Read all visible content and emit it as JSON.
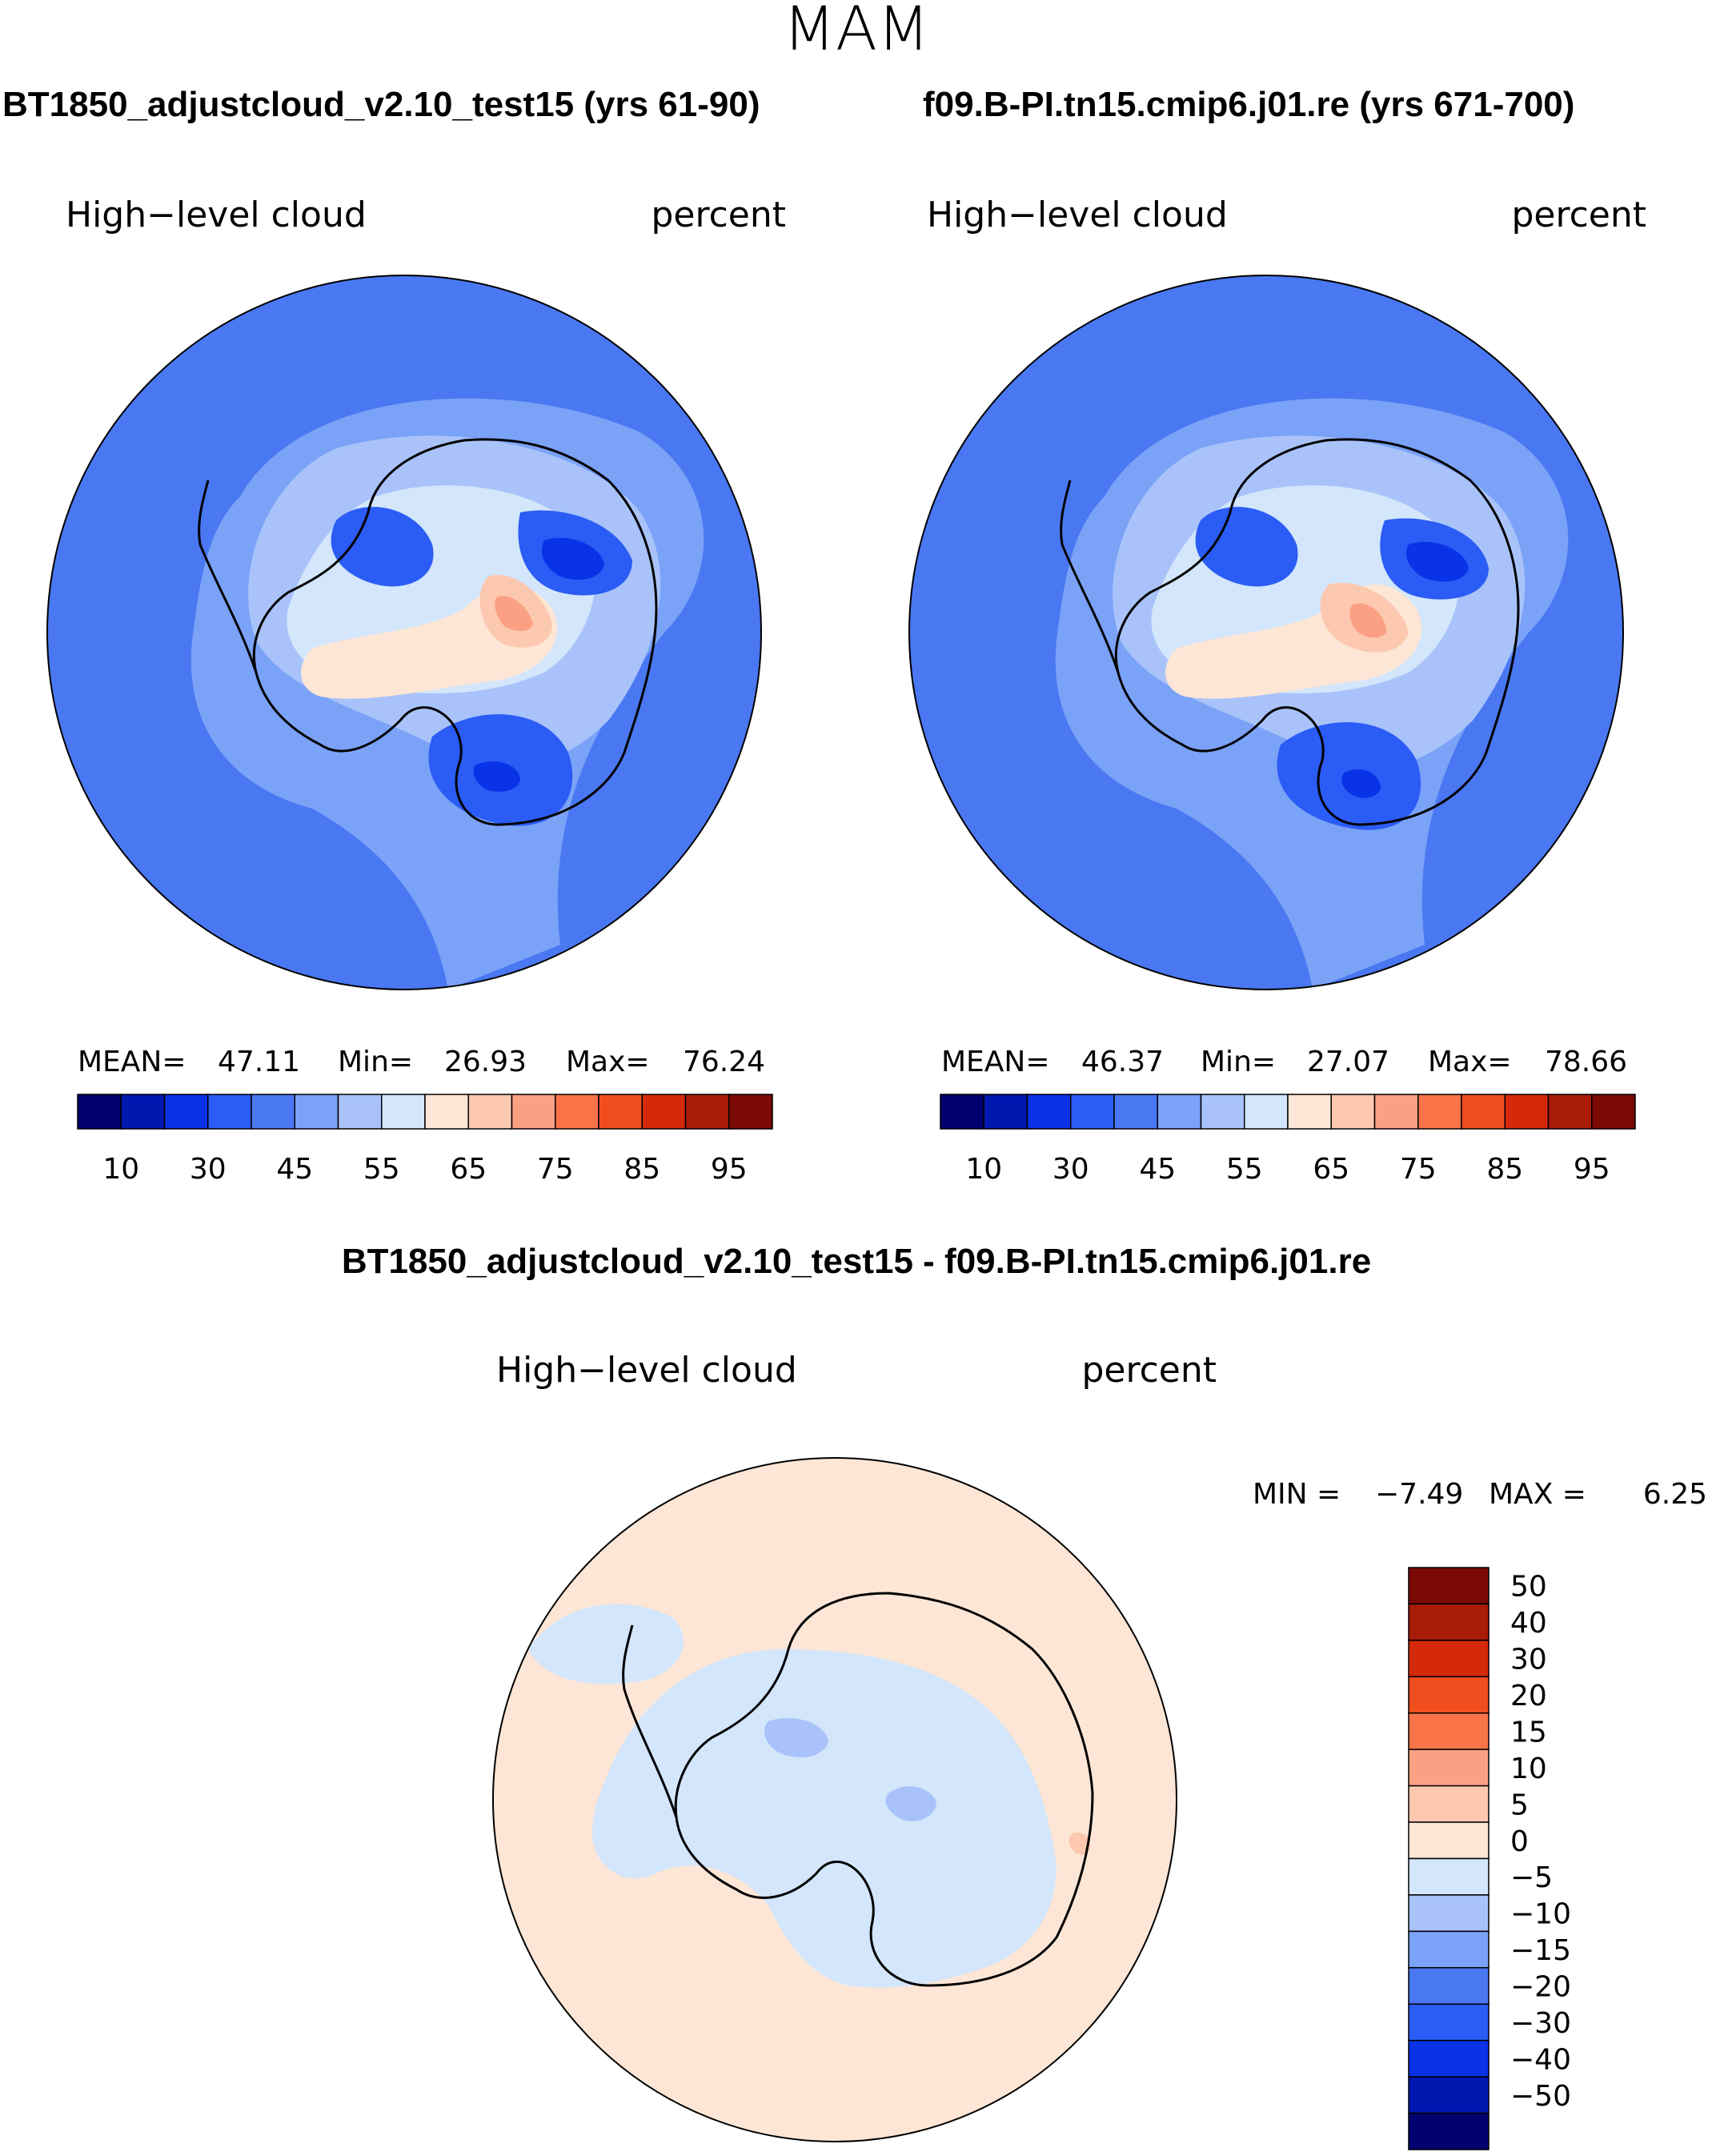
{
  "figure": {
    "season": "MAM"
  },
  "chart_data": [
    {
      "type": "heatmap",
      "projection": "south-polar-stereographic",
      "case_title": "BT1850_adjustcloud_v2.10_test15 (yrs 61-90)",
      "variable": "High−level cloud",
      "units": "percent",
      "stats": {
        "mean_label": "MEAN=",
        "mean": "47.11",
        "min_label": "Min=",
        "min": "26.93",
        "max_label": "Max=",
        "max": "76.24"
      },
      "colorbar": {
        "levels": [
          5,
          10,
          15,
          30,
          40,
          45,
          50,
          55,
          60,
          65,
          70,
          75,
          80,
          85,
          90,
          95
        ],
        "tick_labels": [
          "10",
          "30",
          "45",
          "55",
          "65",
          "75",
          "85",
          "95"
        ],
        "colors": [
          "#000070",
          "#0018b0",
          "#0a32e6",
          "#2b5cf5",
          "#4a78f2",
          "#7aa2f7",
          "#a9c3fa",
          "#d3e6fb",
          "#fde6d5",
          "#fcc8b0",
          "#fba083",
          "#f97448",
          "#f04e1f",
          "#d5290c",
          "#a81c08",
          "#7b0a07"
        ]
      }
    },
    {
      "type": "heatmap",
      "projection": "south-polar-stereographic",
      "case_title": "f09.B-PI.tn15.cmip6.j01.re (yrs 671-700)",
      "variable": "High−level cloud",
      "units": "percent",
      "stats": {
        "mean_label": "MEAN=",
        "mean": "46.37",
        "min_label": "Min=",
        "min": "27.07",
        "max_label": "Max=",
        "max": "78.66"
      },
      "colorbar": {
        "levels": [
          5,
          10,
          15,
          30,
          40,
          45,
          50,
          55,
          60,
          65,
          70,
          75,
          80,
          85,
          90,
          95
        ],
        "tick_labels": [
          "10",
          "30",
          "45",
          "55",
          "65",
          "75",
          "85",
          "95"
        ],
        "colors": [
          "#000070",
          "#0018b0",
          "#0a32e6",
          "#2b5cf5",
          "#4a78f2",
          "#7aa2f7",
          "#a9c3fa",
          "#d3e6fb",
          "#fde6d5",
          "#fcc8b0",
          "#fba083",
          "#f97448",
          "#f04e1f",
          "#d5290c",
          "#a81c08",
          "#7b0a07"
        ]
      }
    },
    {
      "type": "heatmap",
      "projection": "south-polar-stereographic",
      "case_title": "BT1850_adjustcloud_v2.10_test15 - f09.B-PI.tn15.cmip6.j01.re",
      "variable": "High−level cloud",
      "units": "percent",
      "stats": {
        "min_label": "MIN =",
        "min": "−7.49",
        "max_label": "MAX =",
        "max": "6.25"
      },
      "colorbar": {
        "orientation": "vertical",
        "levels_top_to_bottom": [
          "50",
          "40",
          "30",
          "20",
          "15",
          "10",
          "5",
          "0",
          "−5",
          "−10",
          "−15",
          "−20",
          "−30",
          "−40",
          "−50"
        ],
        "colors_top_to_bottom": [
          "#7b0a07",
          "#a81c08",
          "#d5290c",
          "#f04e1f",
          "#f97448",
          "#fba083",
          "#fcc8b0",
          "#fde6d5",
          "#d3e6fb",
          "#a9c3fa",
          "#7aa2f7",
          "#4a78f2",
          "#2b5cf5",
          "#0a32e6",
          "#0018b0",
          "#000070"
        ]
      }
    }
  ]
}
